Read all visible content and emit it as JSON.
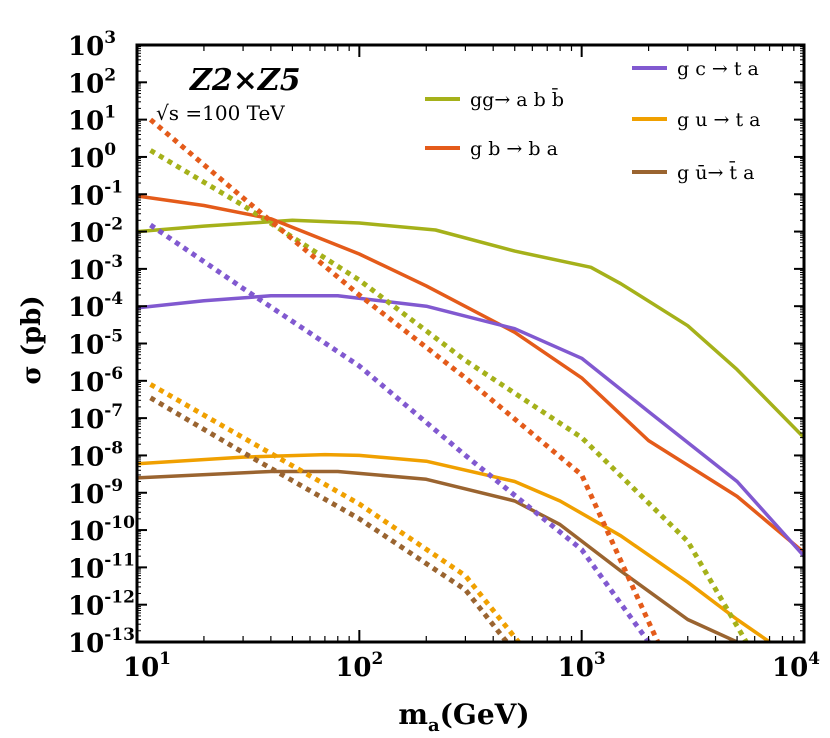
{
  "chart_data": {
    "type": "line",
    "xscale": "log",
    "yscale": "log",
    "xlim": [
      10,
      10000
    ],
    "ylim": [
      1e-13,
      1000
    ],
    "xlabel": "m",
    "xlabel_sub": "a",
    "xlabel_unit": "(GeV)",
    "ylabel": "σ (pb)",
    "annotation_model": "Z2×Z5",
    "annotation_energy": "√s =100 TeV",
    "grid": false,
    "x_ticks": [
      {
        "value": 10,
        "base": "10",
        "exp": "1"
      },
      {
        "value": 100,
        "base": "10",
        "exp": "2"
      },
      {
        "value": 1000,
        "base": "10",
        "exp": "3"
      },
      {
        "value": 10000,
        "base": "10",
        "exp": "4"
      }
    ],
    "y_ticks": [
      {
        "value": 1000.0,
        "base": "10",
        "exp": "3"
      },
      {
        "value": 100.0,
        "base": "10",
        "exp": "2"
      },
      {
        "value": 10.0,
        "base": "10",
        "exp": "1"
      },
      {
        "value": 1.0,
        "base": "10",
        "exp": "0"
      },
      {
        "value": 0.1,
        "base": "10",
        "exp": "-1"
      },
      {
        "value": 0.01,
        "base": "10",
        "exp": "-2"
      },
      {
        "value": 0.001,
        "base": "10",
        "exp": "-3"
      },
      {
        "value": 0.0001,
        "base": "10",
        "exp": "-4"
      },
      {
        "value": 1e-05,
        "base": "10",
        "exp": "-5"
      },
      {
        "value": 1e-06,
        "base": "10",
        "exp": "-6"
      },
      {
        "value": 1e-07,
        "base": "10",
        "exp": "-7"
      },
      {
        "value": 1e-08,
        "base": "10",
        "exp": "-8"
      },
      {
        "value": 1e-09,
        "base": "10",
        "exp": "-9"
      },
      {
        "value": 1e-10,
        "base": "10",
        "exp": "-10"
      },
      {
        "value": 1e-11,
        "base": "10",
        "exp": "-11"
      },
      {
        "value": 1e-12,
        "base": "10",
        "exp": "-12"
      },
      {
        "value": 1e-13,
        "base": "10",
        "exp": "-13"
      }
    ],
    "legend": [
      {
        "label": "gg→ a b b̄",
        "color": "#a5b11a",
        "group": "left"
      },
      {
        "label": "g b → b a",
        "color": "#e45b1a",
        "group": "left"
      },
      {
        "label": "g c → t a",
        "color": "#8159d0",
        "group": "right"
      },
      {
        "label": "g u → t a",
        "color": "#f0a000",
        "group": "right"
      },
      {
        "label": "g ū→ t̄ a",
        "color": "#9a6430",
        "group": "right"
      }
    ],
    "series": [
      {
        "name": "gg→ a b b̄",
        "style": "solid",
        "color": "#a5b11a",
        "points": [
          [
            10,
            0.01
          ],
          [
            20,
            0.014
          ],
          [
            50,
            0.02
          ],
          [
            100,
            0.017
          ],
          [
            220,
            0.011
          ],
          [
            500,
            0.003
          ],
          [
            1100,
            0.0011
          ],
          [
            1500,
            0.0004
          ],
          [
            3000,
            3e-05
          ],
          [
            5000,
            2e-06
          ],
          [
            10000,
            3e-08
          ]
        ]
      },
      {
        "name": "g b → b a",
        "style": "solid",
        "color": "#e45b1a",
        "points": [
          [
            10,
            0.09
          ],
          [
            20,
            0.05
          ],
          [
            40,
            0.022
          ],
          [
            100,
            0.0025
          ],
          [
            200,
            0.00035
          ],
          [
            500,
            2e-05
          ],
          [
            1000,
            1.2e-06
          ],
          [
            2000,
            2.5e-08
          ],
          [
            5000,
            8e-10
          ],
          [
            10000,
            2.5e-11
          ]
        ]
      },
      {
        "name": "g c → t a",
        "style": "solid",
        "color": "#8159d0",
        "points": [
          [
            10,
            9e-05
          ],
          [
            20,
            0.00014
          ],
          [
            40,
            0.00019
          ],
          [
            80,
            0.00019
          ],
          [
            200,
            0.0001
          ],
          [
            500,
            2.5e-05
          ],
          [
            1000,
            4e-06
          ],
          [
            2000,
            1.5e-07
          ],
          [
            5000,
            2e-09
          ],
          [
            10000,
            2e-11
          ]
        ]
      },
      {
        "name": "g u → t a",
        "style": "solid",
        "color": "#f0a000",
        "points": [
          [
            10,
            6e-09
          ],
          [
            30,
            9e-09
          ],
          [
            70,
            1.05e-08
          ],
          [
            100,
            1e-08
          ],
          [
            200,
            7e-09
          ],
          [
            500,
            2e-09
          ],
          [
            800,
            6e-10
          ],
          [
            1500,
            7e-11
          ],
          [
            3000,
            4e-12
          ],
          [
            5000,
            4e-13
          ],
          [
            7000,
            1e-13
          ]
        ]
      },
      {
        "name": "g ū→ t̄ a",
        "style": "solid",
        "color": "#9a6430",
        "points": [
          [
            10,
            2.5e-09
          ],
          [
            40,
            3.7e-09
          ],
          [
            80,
            3.7e-09
          ],
          [
            200,
            2.3e-09
          ],
          [
            500,
            6e-10
          ],
          [
            800,
            1.4e-10
          ],
          [
            1500,
            8e-12
          ],
          [
            3000,
            4e-13
          ],
          [
            5000,
            1e-13
          ]
        ]
      },
      {
        "name": "gg→ a b b̄ (dotted)",
        "style": "dotted",
        "color": "#a5b11a",
        "points": [
          [
            11.5,
            1.5
          ],
          [
            30,
            0.05
          ],
          [
            100,
            0.0005
          ],
          [
            300,
            3.5e-06
          ],
          [
            1000,
            3e-08
          ],
          [
            3000,
            5e-11
          ],
          [
            5500,
            1e-13
          ]
        ]
      },
      {
        "name": "g b → b a (dotted)",
        "style": "dotted",
        "color": "#e45b1a",
        "points": [
          [
            11.5,
            10
          ],
          [
            30,
            0.08
          ],
          [
            100,
            0.0002
          ],
          [
            300,
            1.2e-06
          ],
          [
            1000,
            3e-09
          ],
          [
            2200,
            1e-13
          ]
        ]
      },
      {
        "name": "g c → t a (dotted)",
        "style": "dotted",
        "color": "#8159d0",
        "points": [
          [
            11.5,
            0.015
          ],
          [
            30,
            0.0003
          ],
          [
            100,
            2.5e-06
          ],
          [
            300,
            1e-08
          ],
          [
            1000,
            3e-11
          ],
          [
            2000,
            1e-13
          ]
        ]
      },
      {
        "name": "g u → t a (dotted)",
        "style": "dotted",
        "color": "#f0a000",
        "points": [
          [
            11.5,
            8e-07
          ],
          [
            30,
            3e-08
          ],
          [
            100,
            5e-10
          ],
          [
            300,
            6e-12
          ],
          [
            520,
            1e-13
          ]
        ]
      },
      {
        "name": "g ū→ t̄ a (dotted)",
        "style": "dotted",
        "color": "#9a6430",
        "points": [
          [
            11.5,
            3.5e-07
          ],
          [
            30,
            1.2e-08
          ],
          [
            100,
            2e-10
          ],
          [
            300,
            2.5e-12
          ],
          [
            460,
            1e-13
          ]
        ]
      }
    ]
  }
}
